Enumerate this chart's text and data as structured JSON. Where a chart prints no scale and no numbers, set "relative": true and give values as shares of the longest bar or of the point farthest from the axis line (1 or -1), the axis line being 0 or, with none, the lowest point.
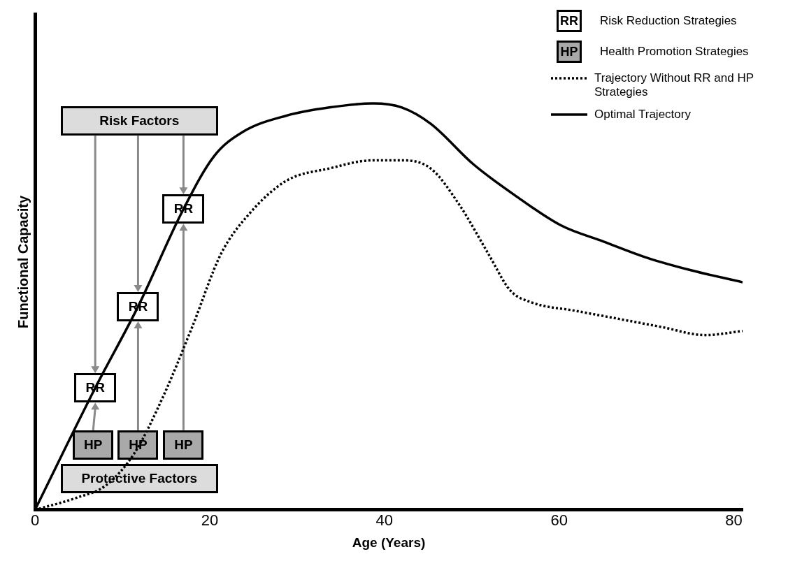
{
  "chart_data": {
    "type": "line",
    "relative": true,
    "xlabel": "Age (Years)",
    "ylabel": "Functional Capacity",
    "xlim": [
      0,
      81
    ],
    "xticks": [
      0,
      20,
      40,
      60,
      80
    ],
    "tick_labels": "x",
    "grid": false,
    "legend": "top right",
    "series": [
      {
        "name": "Trajectory Without RR and HP Strategies",
        "color": "#000000",
        "line_style": "dotted",
        "x": [
          0,
          4.8,
          8.1,
          11.4,
          14.7,
          18.0,
          21.3,
          24.6,
          28.8,
          33.7,
          38.7,
          42.0,
          45.3,
          48.6,
          51.9,
          54.4,
          56.9,
          61.8,
          66.8,
          71.7,
          76.7,
          81.0
        ],
        "values": [
          0,
          0.03,
          0.06,
          0.14,
          0.28,
          0.45,
          0.63,
          0.73,
          0.81,
          0.84,
          0.86,
          0.86,
          0.84,
          0.75,
          0.63,
          0.54,
          0.51,
          0.49,
          0.47,
          0.45,
          0.43,
          0.44
        ]
      },
      {
        "name": "Optimal Trajectory",
        "color": "#000000",
        "line_style": "solid",
        "x": [
          0,
          6.9,
          11.8,
          17.0,
          20.5,
          23.8,
          28.8,
          33.7,
          38.7,
          42.0,
          45.3,
          50.2,
          55.2,
          60.2,
          65.1,
          70.1,
          75.0,
          81.0
        ],
        "values": [
          0,
          0.3,
          0.5,
          0.74,
          0.87,
          0.93,
          0.97,
          0.99,
          1.0,
          0.99,
          0.95,
          0.85,
          0.77,
          0.7,
          0.66,
          0.62,
          0.59,
          0.56
        ]
      }
    ],
    "annotations": [
      "Risk Factors",
      "Protective Factors",
      {
        "text": "RR",
        "x": 6.9,
        "y": 0.3
      },
      {
        "text": "RR",
        "x": 11.8,
        "y": 0.5
      },
      {
        "text": "RR",
        "x": 17.0,
        "y": 0.74
      },
      "HP",
      "HP",
      "HP",
      "Risk Reduction Strategies",
      "Health Promotion Strategies"
    ]
  }
}
